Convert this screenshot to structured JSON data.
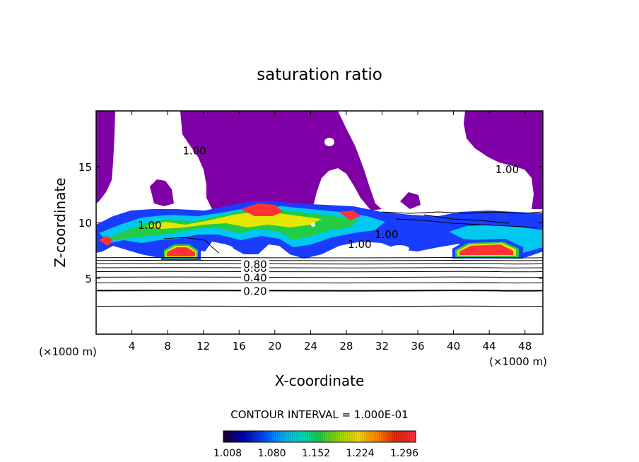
{
  "chart_data": {
    "type": "contour",
    "title": "saturation ratio",
    "xlabel": "X-coordinate",
    "ylabel": "Z-coordinate",
    "x_unit_left": "(×1000 m)",
    "x_unit_right": "(×1000 m)",
    "xlim": [
      0,
      50
    ],
    "ylim": [
      0,
      20
    ],
    "x_ticks": [
      4,
      8,
      12,
      16,
      20,
      24,
      28,
      32,
      36,
      40,
      44,
      48
    ],
    "y_ticks": [
      5,
      10,
      15
    ],
    "contour_interval_text": "CONTOUR INTERVAL = 1.000E-01",
    "contour_levels_z": [
      {
        "z": 2.5,
        "label": ""
      },
      {
        "z": 3.9,
        "label": "0.20"
      },
      {
        "z": 4.6,
        "label": ""
      },
      {
        "z": 5.1,
        "label": "0.40"
      },
      {
        "z": 5.6,
        "label": ""
      },
      {
        "z": 5.95,
        "label": "0.60"
      },
      {
        "z": 6.3,
        "label": "0.80"
      },
      {
        "z": 6.6,
        "label": ""
      },
      {
        "z": 6.85,
        "label": ""
      }
    ],
    "contour_labels_1": [
      {
        "x": 11,
        "z": 16.5,
        "label": "1.00"
      },
      {
        "x": 46,
        "z": 14.8,
        "label": "1.00"
      },
      {
        "x": 6,
        "z": 9.8,
        "label": "1.00"
      },
      {
        "x": 32.5,
        "z": 9.0,
        "label": "1.00"
      },
      {
        "x": 29.5,
        "z": 8.1,
        "label": "1.00"
      }
    ],
    "colorbar": {
      "tick_labels": [
        "1.008",
        "1.080",
        "1.152",
        "1.224",
        "1.296"
      ],
      "colors": [
        "#1a0033",
        "#0000aa",
        "#0044ff",
        "#00aaff",
        "#00ddcc",
        "#22cc44",
        "#99dd00",
        "#ffdd00",
        "#ff8800",
        "#ee2200",
        "#ff3344"
      ]
    },
    "fill_colors": {
      "subsaturated_ice": "#7f00a6",
      "blue": "#1a3cff",
      "cyan": "#00c8f0",
      "green": "#22cc44",
      "yellow": "#e6e600",
      "red": "#ff3333"
    }
  }
}
